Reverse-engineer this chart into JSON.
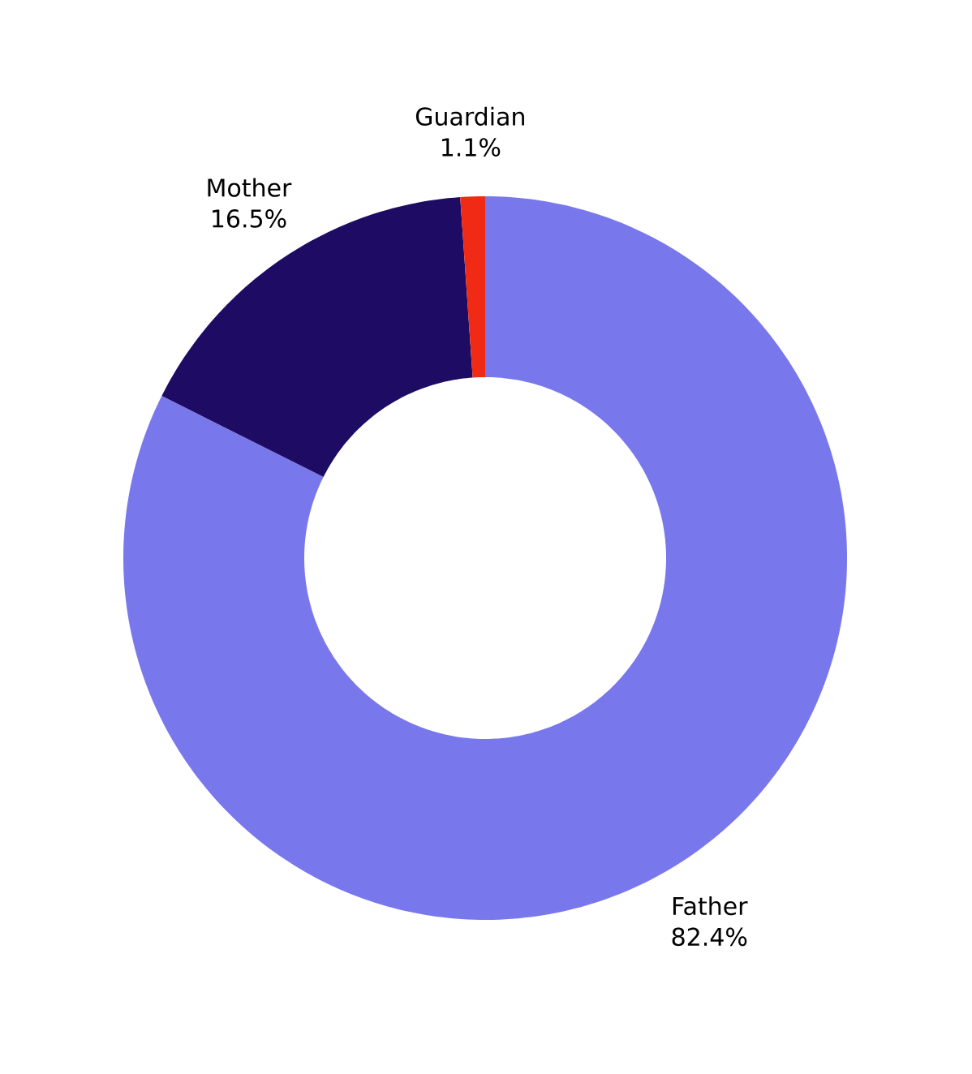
{
  "chart_data": {
    "type": "donut",
    "categories": [
      "Father",
      "Mother",
      "Guardian"
    ],
    "values": [
      82.4,
      16.5,
      1.1
    ],
    "colors": [
      "#7878ec",
      "#1e0c64",
      "#f02a14"
    ],
    "value_labels": [
      "82.4%",
      "16.5%",
      "1.1%"
    ]
  }
}
